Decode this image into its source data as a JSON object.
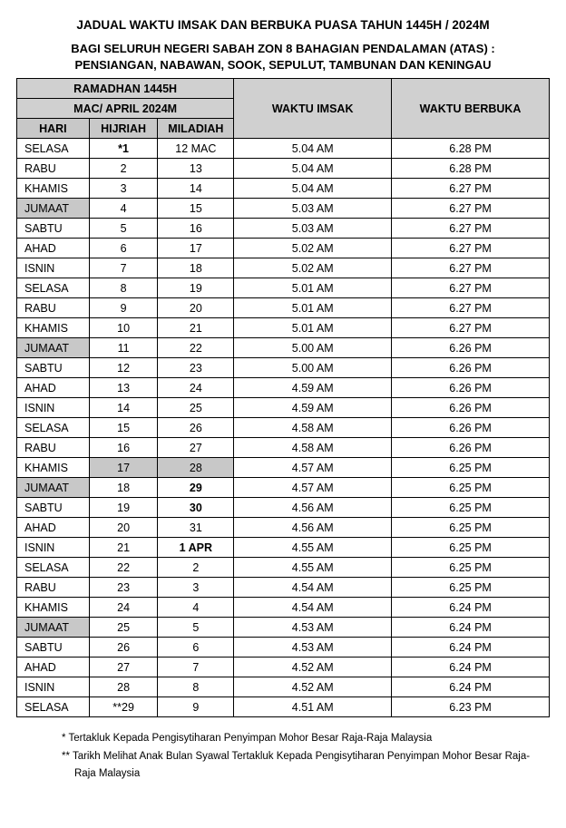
{
  "title": "JADUAL WAKTU IMSAK DAN BERBUKA PUASA TAHUN 1445H / 2024M",
  "subtitle_line1": "BAGI SELURUH NEGERI SABAH ZON 8 BAHAGIAN PENDALAMAN (ATAS) :",
  "subtitle_line2": "PENSIANGAN, NABAWAN, SOOK, SEPULUT, TAMBUNAN DAN KENINGAU",
  "header": {
    "ramadhan": "RAMADHAN 1445H",
    "macapril": "MAC/ APRIL 2024M",
    "hari": "HARI",
    "hijriah": "HIJRIAH",
    "miladiah": "MILADIAH",
    "imsak": "WAKTU IMSAK",
    "berbuka": "WAKTU BERBUKA"
  },
  "colwidths": {
    "hari": 78,
    "hijriah": 74,
    "miladiah": 82,
    "imsak": 170,
    "berbuka": 170
  },
  "rows": [
    {
      "hari": "SELASA",
      "hij": "*1",
      "hij_bold": true,
      "mil": "12 MAC",
      "imsak": "5.04 AM",
      "berbuka": "6.28 PM"
    },
    {
      "hari": "RABU",
      "hij": "2",
      "mil": "13",
      "imsak": "5.04 AM",
      "berbuka": "6.28 PM"
    },
    {
      "hari": "KHAMIS",
      "hij": "3",
      "mil": "14",
      "imsak": "5.04 AM",
      "berbuka": "6.27 PM"
    },
    {
      "hari": "JUMAAT",
      "hari_hl": true,
      "hij": "4",
      "mil": "15",
      "imsak": "5.03 AM",
      "berbuka": "6.27 PM"
    },
    {
      "hari": "SABTU",
      "hij": "5",
      "mil": "16",
      "imsak": "5.03 AM",
      "berbuka": "6.27 PM"
    },
    {
      "hari": "AHAD",
      "hij": "6",
      "mil": "17",
      "imsak": "5.02 AM",
      "berbuka": "6.27 PM"
    },
    {
      "hari": "ISNIN",
      "hij": "7",
      "mil": "18",
      "imsak": "5.02 AM",
      "berbuka": "6.27 PM"
    },
    {
      "hari": "SELASA",
      "hij": "8",
      "mil": "19",
      "imsak": "5.01 AM",
      "berbuka": "6.27 PM"
    },
    {
      "hari": "RABU",
      "hij": "9",
      "mil": "20",
      "imsak": "5.01 AM",
      "berbuka": "6.27 PM"
    },
    {
      "hari": "KHAMIS",
      "hij": "10",
      "mil": "21",
      "imsak": "5.01 AM",
      "berbuka": "6.27 PM"
    },
    {
      "hari": "JUMAAT",
      "hari_hl": true,
      "hij": "11",
      "mil": "22",
      "imsak": "5.00 AM",
      "berbuka": "6.26 PM"
    },
    {
      "hari": "SABTU",
      "hij": "12",
      "mil": "23",
      "imsak": "5.00 AM",
      "berbuka": "6.26 PM"
    },
    {
      "hari": "AHAD",
      "hij": "13",
      "mil": "24",
      "imsak": "4.59 AM",
      "berbuka": "6.26 PM"
    },
    {
      "hari": "ISNIN",
      "hij": "14",
      "mil": "25",
      "imsak": "4.59 AM",
      "berbuka": "6.26 PM"
    },
    {
      "hari": "SELASA",
      "hij": "15",
      "mil": "26",
      "imsak": "4.58 AM",
      "berbuka": "6.26 PM"
    },
    {
      "hari": "RABU",
      "hij": "16",
      "mil": "27",
      "imsak": "4.58 AM",
      "berbuka": "6.26 PM"
    },
    {
      "hari": "KHAMIS",
      "hij": "17",
      "hij_hl": true,
      "mil": "28",
      "mil_hl": true,
      "imsak": "4.57 AM",
      "berbuka": "6.25 PM"
    },
    {
      "hari": "JUMAAT",
      "hari_hl": true,
      "hij": "18",
      "mil": "29",
      "mil_bold": true,
      "imsak": "4.57 AM",
      "berbuka": "6.25 PM"
    },
    {
      "hari": "SABTU",
      "hij": "19",
      "mil": "30",
      "mil_bold": true,
      "imsak": "4.56 AM",
      "berbuka": "6.25 PM"
    },
    {
      "hari": "AHAD",
      "hij": "20",
      "mil": "31",
      "imsak": "4.56 AM",
      "berbuka": "6.25 PM"
    },
    {
      "hari": "ISNIN",
      "hij": "21",
      "mil": "1 APR",
      "mil_bold": true,
      "imsak": "4.55 AM",
      "berbuka": "6.25 PM"
    },
    {
      "hari": "SELASA",
      "hij": "22",
      "mil": "2",
      "imsak": "4.55 AM",
      "berbuka": "6.25 PM"
    },
    {
      "hari": "RABU",
      "hij": "23",
      "mil": "3",
      "imsak": "4.54 AM",
      "berbuka": "6.25 PM"
    },
    {
      "hari": "KHAMIS",
      "hij": "24",
      "mil": "4",
      "imsak": "4.54 AM",
      "berbuka": "6.24 PM"
    },
    {
      "hari": "JUMAAT",
      "hari_hl": true,
      "hij": "25",
      "mil": "5",
      "imsak": "4.53 AM",
      "berbuka": "6.24 PM"
    },
    {
      "hari": "SABTU",
      "hij": "26",
      "mil": "6",
      "imsak": "4.53 AM",
      "berbuka": "6.24 PM"
    },
    {
      "hari": "AHAD",
      "hij": "27",
      "mil": "7",
      "imsak": "4.52 AM",
      "berbuka": "6.24 PM"
    },
    {
      "hari": "ISNIN",
      "hij": "28",
      "mil": "8",
      "imsak": "4.52 AM",
      "berbuka": "6.24 PM"
    },
    {
      "hari": "SELASA",
      "hij": "**29",
      "mil": "9",
      "imsak": "4.51 AM",
      "berbuka": "6.23 PM"
    }
  ],
  "footnotes": {
    "fn1": "* Tertakluk Kepada Pengisytiharan Penyimpan Mohor Besar Raja-Raja Malaysia",
    "fn2": "** Tarikh Melihat Anak Bulan Syawal Tertakluk Kepada Pengisytiharan Penyimpan Mohor Besar Raja-Raja Malaysia"
  }
}
